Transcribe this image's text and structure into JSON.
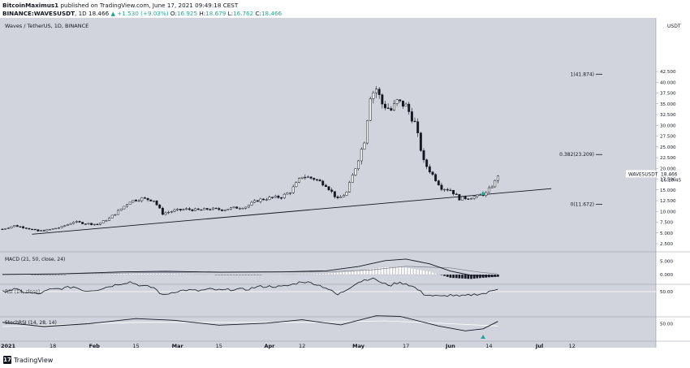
{
  "header": {
    "author": "BitcoinMaximus1",
    "published_text": "published on TradingView.com, June 17, 2021 09:49:18 CEST",
    "symbol": "BINANCE:WAVESUSDT",
    "interval": "1D",
    "last": "18.466",
    "change": "+1.530 (+9.03%)",
    "ohlc": {
      "O": "16.925",
      "H": "18.679",
      "L": "16.762",
      "C": "18.466"
    }
  },
  "footer": {
    "brand": "TradingView"
  },
  "chart_data": [
    {
      "type": "candlestick",
      "title": "Waves / TetherUS, 1D, BINANCE",
      "currency": "USDT",
      "ylim": [
        0,
        45
      ],
      "price_ticks": [
        "42.500",
        "40.000",
        "37.500",
        "35.000",
        "32.500",
        "30.000",
        "27.500",
        "25.000",
        "22.500",
        "20.000",
        "17.500",
        "15.000",
        "12.500",
        "10.000",
        "7.500",
        "5.000",
        "2.500"
      ],
      "x_ticks": [
        "2021",
        "18",
        "Feb",
        "15",
        "Mar",
        "15",
        "Apr",
        "12",
        "May",
        "17",
        "Jun",
        "14",
        "Jul",
        "12"
      ],
      "last_price_label": {
        "symbol": "WAVESUSDT",
        "price": "18.466",
        "countdown": "16:10:45"
      },
      "fib_levels": [
        {
          "label": "1(41.874)",
          "value": 41.874
        },
        {
          "label": "0.382(23.209)",
          "value": 23.209
        },
        {
          "label": "0(11.672)",
          "value": 11.672
        }
      ],
      "trendline": {
        "start": {
          "date": "2021-01-11",
          "price": 4.7
        },
        "end": {
          "date": "2021-07-05",
          "price": 15.3
        }
      },
      "close_path": [
        [
          "2021-01-01",
          5.9
        ],
        [
          "2021-01-05",
          6.7
        ],
        [
          "2021-01-09",
          6.2
        ],
        [
          "2021-01-13",
          5.4
        ],
        [
          "2021-01-17",
          5.8
        ],
        [
          "2021-01-21",
          6.4
        ],
        [
          "2021-01-25",
          7.6
        ],
        [
          "2021-01-29",
          7.2
        ],
        [
          "2021-02-02",
          7.0
        ],
        [
          "2021-02-06",
          8.4
        ],
        [
          "2021-02-10",
          10.6
        ],
        [
          "2021-02-13",
          12.4
        ],
        [
          "2021-02-17",
          13.0
        ],
        [
          "2021-02-21",
          12.6
        ],
        [
          "2021-02-24",
          9.5
        ],
        [
          "2021-02-28",
          10.2
        ],
        [
          "2021-03-04",
          10.5
        ],
        [
          "2021-03-08",
          10.3
        ],
        [
          "2021-03-12",
          10.6
        ],
        [
          "2021-03-16",
          10.4
        ],
        [
          "2021-03-20",
          10.8
        ],
        [
          "2021-03-24",
          11.1
        ],
        [
          "2021-03-28",
          12.6
        ],
        [
          "2021-04-01",
          13.1
        ],
        [
          "2021-04-05",
          13.4
        ],
        [
          "2021-04-08",
          14.6
        ],
        [
          "2021-04-12",
          18.2
        ],
        [
          "2021-04-16",
          17.6
        ],
        [
          "2021-04-20",
          16.2
        ],
        [
          "2021-04-24",
          12.8
        ],
        [
          "2021-04-27",
          14.4
        ],
        [
          "2021-04-30",
          20.2
        ],
        [
          "2021-05-03",
          26.5
        ],
        [
          "2021-05-05",
          37.0
        ],
        [
          "2021-05-07",
          38.5
        ],
        [
          "2021-05-09",
          35.0
        ],
        [
          "2021-05-12",
          33.5
        ],
        [
          "2021-05-14",
          35.5
        ],
        [
          "2021-05-17",
          34.5
        ],
        [
          "2021-05-20",
          30.5
        ],
        [
          "2021-05-23",
          21.5
        ],
        [
          "2021-05-26",
          18.5
        ],
        [
          "2021-05-29",
          15.5
        ],
        [
          "2021-06-01",
          15.0
        ],
        [
          "2021-06-04",
          13.0
        ],
        [
          "2021-06-07",
          13.2
        ],
        [
          "2021-06-10",
          13.5
        ],
        [
          "2021-06-13",
          14.2
        ],
        [
          "2021-06-16",
          16.9
        ],
        [
          "2021-06-17",
          18.466
        ]
      ]
    },
    {
      "type": "line",
      "title": "MACD (21, 50, close, 24)",
      "y_ticks": [
        "5.000",
        "0.000"
      ],
      "macd_path": [
        [
          "2021-01-01",
          0.05
        ],
        [
          "2021-01-20",
          0.25
        ],
        [
          "2021-02-10",
          1.0
        ],
        [
          "2021-02-25",
          1.2
        ],
        [
          "2021-03-15",
          0.9
        ],
        [
          "2021-04-05",
          1.0
        ],
        [
          "2021-04-20",
          1.4
        ],
        [
          "2021-05-01",
          3.0
        ],
        [
          "2021-05-10",
          5.2
        ],
        [
          "2021-05-17",
          5.8
        ],
        [
          "2021-05-25",
          4.0
        ],
        [
          "2021-06-01",
          1.3
        ],
        [
          "2021-06-08",
          -0.3
        ],
        [
          "2021-06-17",
          -0.6
        ]
      ],
      "signal_path": [
        [
          "2021-01-01",
          0.0
        ],
        [
          "2021-02-15",
          0.7
        ],
        [
          "2021-03-15",
          0.95
        ],
        [
          "2021-04-20",
          1.0
        ],
        [
          "2021-05-05",
          1.7
        ],
        [
          "2021-05-17",
          3.1
        ],
        [
          "2021-06-01",
          2.5
        ],
        [
          "2021-06-10",
          1.0
        ],
        [
          "2021-06-17",
          0.2
        ]
      ]
    },
    {
      "type": "line",
      "title": "RSI (14, close)",
      "y_ticks": [
        "50.00"
      ],
      "ylim": [
        0,
        100
      ],
      "rsi_path": [
        [
          "2021-01-01",
          50
        ],
        [
          "2021-01-05",
          56
        ],
        [
          "2021-01-09",
          48
        ],
        [
          "2021-01-13",
          44
        ],
        [
          "2021-01-17",
          55
        ],
        [
          "2021-01-21",
          58
        ],
        [
          "2021-01-25",
          62
        ],
        [
          "2021-01-29",
          52
        ],
        [
          "2021-02-02",
          55
        ],
        [
          "2021-02-06",
          63
        ],
        [
          "2021-02-10",
          70
        ],
        [
          "2021-02-13",
          74
        ],
        [
          "2021-02-17",
          64
        ],
        [
          "2021-02-21",
          60
        ],
        [
          "2021-02-24",
          41
        ],
        [
          "2021-02-28",
          50
        ],
        [
          "2021-03-04",
          54
        ],
        [
          "2021-03-08",
          52
        ],
        [
          "2021-03-12",
          56
        ],
        [
          "2021-03-16",
          53
        ],
        [
          "2021-03-20",
          56
        ],
        [
          "2021-03-24",
          55
        ],
        [
          "2021-03-28",
          62
        ],
        [
          "2021-04-01",
          63
        ],
        [
          "2021-04-05",
          62
        ],
        [
          "2021-04-08",
          66
        ],
        [
          "2021-04-12",
          75
        ],
        [
          "2021-04-16",
          70
        ],
        [
          "2021-04-20",
          60
        ],
        [
          "2021-04-24",
          42
        ],
        [
          "2021-04-27",
          55
        ],
        [
          "2021-04-30",
          70
        ],
        [
          "2021-05-03",
          79
        ],
        [
          "2021-05-05",
          82
        ],
        [
          "2021-05-07",
          80
        ],
        [
          "2021-05-09",
          70
        ],
        [
          "2021-05-12",
          66
        ],
        [
          "2021-05-14",
          72
        ],
        [
          "2021-05-17",
          70
        ],
        [
          "2021-05-20",
          60
        ],
        [
          "2021-05-23",
          44
        ],
        [
          "2021-05-26",
          40
        ],
        [
          "2021-05-29",
          38
        ],
        [
          "2021-06-01",
          42
        ],
        [
          "2021-06-04",
          38
        ],
        [
          "2021-06-07",
          41
        ],
        [
          "2021-06-10",
          44
        ],
        [
          "2021-06-13",
          46
        ],
        [
          "2021-06-17",
          58
        ]
      ]
    },
    {
      "type": "line",
      "title": "StochRSI (14, 28, 14)",
      "y_ticks": [
        "50.00"
      ],
      "ylim": [
        0,
        100
      ],
      "stoch_path": [
        [
          "2021-01-01",
          55
        ],
        [
          "2021-01-15",
          40
        ],
        [
          "2021-01-30",
          50
        ],
        [
          "2021-02-15",
          68
        ],
        [
          "2021-02-28",
          62
        ],
        [
          "2021-03-15",
          45
        ],
        [
          "2021-03-31",
          52
        ],
        [
          "2021-04-12",
          64
        ],
        [
          "2021-04-25",
          46
        ],
        [
          "2021-05-07",
          78
        ],
        [
          "2021-05-15",
          76
        ],
        [
          "2021-05-28",
          42
        ],
        [
          "2021-06-06",
          25
        ],
        [
          "2021-06-12",
          32
        ],
        [
          "2021-06-17",
          58
        ]
      ],
      "signal_path": [
        [
          "2021-01-01",
          40
        ],
        [
          "2021-02-15",
          55
        ],
        [
          "2021-03-15",
          55
        ],
        [
          "2021-04-15",
          55
        ],
        [
          "2021-05-10",
          60
        ],
        [
          "2021-06-01",
          50
        ],
        [
          "2021-06-17",
          42
        ]
      ]
    }
  ],
  "markers": [
    {
      "date": "2021-06-12",
      "panel": "price",
      "shape": "triangle-up"
    },
    {
      "date": "2021-06-12",
      "panel": "stoch",
      "shape": "triangle-up"
    }
  ],
  "colors": {
    "panel_bg": "#d1d4dc",
    "line": "#131722",
    "up": "#26a69a",
    "signal_arrow": "#26a69a",
    "grid_frame": "#9598a1"
  }
}
